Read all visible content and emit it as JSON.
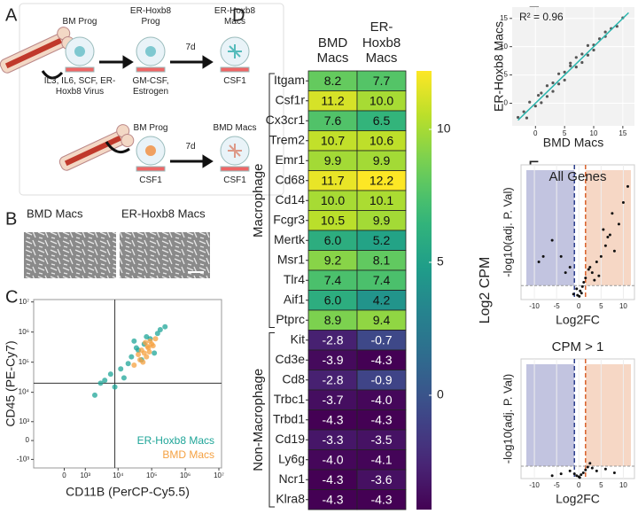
{
  "panel_labels": [
    "A",
    "B",
    "C",
    "D",
    "E",
    "F"
  ],
  "diagram": {
    "labels": [
      "BM Prog",
      "ER-Hoxb8 Prog",
      "ER-Hoxb8 Macs",
      "IL3, IL6, SCF, ER-Hoxb8 Virus",
      "GM-CSF, Estrogen",
      "7d",
      "CSF1",
      "BM Prog",
      "7d",
      "BMD Macs",
      "CSF1",
      "CSF1"
    ]
  },
  "micrographs": {
    "labels": [
      "BMD Macs",
      "ER-Hoxb8 Macs"
    ]
  },
  "chart_data": [
    {
      "type": "scatter",
      "x_label": "CD11B (PerCP-Cy5.5)",
      "y_label": "CD45 (PE-Cy7)",
      "xscale": "biexponential",
      "yscale": "biexponential",
      "xlim": [
        -2000,
        12000000
      ],
      "ylim": [
        -2000,
        12000000
      ],
      "xticks": [
        {
          "value": 0,
          "label": "0"
        },
        {
          "value": 1000,
          "label": "10³"
        },
        {
          "value": 10000,
          "label": "10⁴"
        },
        {
          "value": 100000,
          "label": "10⁵"
        },
        {
          "value": 1000000,
          "label": "10⁶"
        },
        {
          "value": 10000000,
          "label": "10⁷"
        }
      ],
      "yticks": [
        {
          "value": -1000,
          "label": "-10³"
        },
        {
          "value": 0,
          "label": "0"
        },
        {
          "value": 1000,
          "label": "10³"
        },
        {
          "value": 10000,
          "label": "10⁴"
        },
        {
          "value": 100000,
          "label": "10⁵"
        },
        {
          "value": 1000000,
          "label": "10⁶"
        },
        {
          "value": 10000000,
          "label": "10⁷"
        }
      ],
      "quadrant": [
        8000,
        20000
      ],
      "legend": "lower right",
      "series": [
        {
          "name": "ER-Hoxb8 Macs",
          "color": "#1fa598",
          "x": [
            3000,
            6000,
            12000,
            25000,
            40000,
            60000,
            90000,
            150000,
            250000,
            20000,
            8000,
            35000,
            70000,
            120000,
            15000,
            50000,
            2000,
            4000,
            180000,
            30000
          ],
          "y": [
            20000,
            40000,
            60000,
            150000,
            250000,
            400000,
            600000,
            900000,
            1500000,
            90000,
            15000,
            300000,
            700000,
            200000,
            30000,
            120000,
            8000,
            25000,
            1200000,
            500000
          ]
        },
        {
          "name": "BMD Macs",
          "color": "#f5a142",
          "x": [
            30000,
            45000,
            60000,
            80000,
            100000,
            130000,
            50000,
            70000,
            90000,
            40000,
            110000,
            65000,
            85000,
            55000,
            75000
          ],
          "y": [
            80000,
            120000,
            200000,
            300000,
            400000,
            600000,
            250000,
            150000,
            500000,
            180000,
            350000,
            450000,
            220000,
            100000,
            330000
          ]
        }
      ]
    },
    {
      "type": "heatmap",
      "columns": [
        "BMD Macs",
        "ER-Hoxb8 Macs"
      ],
      "rows": [
        "Itgam",
        "Csf1r",
        "Cx3cr1",
        "Trem2",
        "Emr1",
        "Cd68",
        "Cd14",
        "Fcgr3",
        "Mertk",
        "Msr1",
        "Tlr4",
        "Aif1",
        "Ptprc",
        "Kit",
        "Cd3e",
        "Cd8",
        "Trbc1",
        "Trbd1",
        "Cd19",
        "Ly6g",
        "Ncr1",
        "Klra8"
      ],
      "values": [
        [
          8.2,
          7.7
        ],
        [
          11.2,
          10.0
        ],
        [
          7.6,
          6.5
        ],
        [
          10.7,
          10.6
        ],
        [
          9.9,
          9.9
        ],
        [
          11.7,
          12.2
        ],
        [
          10.0,
          10.1
        ],
        [
          10.5,
          9.9
        ],
        [
          6.0,
          5.2
        ],
        [
          9.2,
          8.1
        ],
        [
          7.4,
          7.4
        ],
        [
          6.0,
          4.2
        ],
        [
          8.9,
          9.4
        ],
        [
          -2.8,
          -0.7
        ],
        [
          -3.9,
          -4.3
        ],
        [
          -2.8,
          -0.9
        ],
        [
          -3.7,
          -4.0
        ],
        [
          -4.3,
          -4.3
        ],
        [
          -3.3,
          -3.5
        ],
        [
          -4.0,
          -4.1
        ],
        [
          -4.3,
          -3.6
        ],
        [
          -4.3,
          -4.3
        ]
      ],
      "value_labels": [
        [
          "8.2",
          "7.7"
        ],
        [
          "11.2",
          "10.0"
        ],
        [
          "7.6",
          "6.5"
        ],
        [
          "10.7",
          "10.6"
        ],
        [
          "9.9",
          "9.9"
        ],
        [
          "11.7",
          "12.2"
        ],
        [
          "10.0",
          "10.1"
        ],
        [
          "10.5",
          "9.9"
        ],
        [
          "6.0",
          "5.2"
        ],
        [
          "9.2",
          "8.1"
        ],
        [
          "7.4",
          "7.4"
        ],
        [
          "6.0",
          "4.2"
        ],
        [
          "8.9",
          "9.4"
        ],
        [
          "-2.8",
          "-0.7"
        ],
        [
          "-3.9",
          "-4.3"
        ],
        [
          "-2.8",
          "-0.9"
        ],
        [
          "-3.7",
          "-4.0"
        ],
        [
          "-4.3",
          "-4.3"
        ],
        [
          "-3.3",
          "-3.5"
        ],
        [
          "-4.0",
          "-4.1"
        ],
        [
          "-4.3",
          "-3.6"
        ],
        [
          "-4.3",
          "-4.3"
        ]
      ],
      "groups": [
        {
          "name": "Macrophage",
          "size": 13
        },
        {
          "name": "Non-Macrophage",
          "size": 9
        }
      ],
      "colormap": "viridis",
      "clim": [
        -4.3,
        12.2
      ],
      "cticks": [
        0,
        5,
        10
      ],
      "colorbar_label": "Log2 CPM"
    },
    {
      "type": "scatter",
      "x_label": "BMD Macs",
      "y_label": "ER-Hoxb8 Macs",
      "annotation": "R² = 0.96",
      "xlim": [
        -4,
        17
      ],
      "ylim": [
        -4,
        17
      ],
      "xticks": [
        0,
        5,
        10,
        15
      ],
      "yticks": [
        0,
        5,
        10,
        15
      ],
      "series": [
        {
          "color": "#222222",
          "x": [
            -3,
            -2,
            -1,
            0,
            1,
            2,
            3,
            4,
            5,
            6,
            7,
            8,
            9,
            10,
            11,
            12,
            13,
            14,
            15,
            2,
            5,
            8,
            3,
            6,
            9,
            1,
            4,
            7,
            10,
            12,
            -1.5,
            0.5
          ],
          "y": [
            -2.5,
            -1.5,
            0.2,
            -0.5,
            1.8,
            1.2,
            3.6,
            3.4,
            5.5,
            6.6,
            6.4,
            8.7,
            8.5,
            10.3,
            11.4,
            11.8,
            13.2,
            13.6,
            15.1,
            3.1,
            4.1,
            7.2,
            2.1,
            7.1,
            10.2,
            0.1,
            5.2,
            8.1,
            9.4,
            12.6,
            -2.6,
            1.4
          ]
        }
      ],
      "fit_line": {
        "color": "#2ab5ad",
        "x": [
          -3,
          16
        ],
        "y": [
          -3,
          16
        ]
      }
    },
    {
      "type": "volcano",
      "title": "All Genes",
      "x_label": "Log2FC",
      "y_label": "-log10(adj. P. Val)",
      "xlim": [
        -13,
        12.5
      ],
      "ylim": [
        0,
        12.5
      ],
      "xticks": [
        -10,
        -5,
        0,
        5,
        10
      ],
      "fc_thresholds": [
        -1,
        1.5
      ],
      "p_threshold": 1.3,
      "down_color": "#b3b5d8",
      "up_color": "#f4cdb6",
      "down_line_color": "#2c3e8c",
      "up_line_color": "#d9622b",
      "x": [
        -1.2,
        -0.5,
        0.3,
        0.8,
        1.5,
        2.5,
        3,
        4,
        5,
        6,
        7,
        8,
        9,
        10,
        3.5,
        4.5,
        -2,
        -3,
        -4,
        -6,
        -8,
        -9,
        0.1,
        -0.3,
        0.6,
        1.1,
        5.5,
        6.5,
        7.5,
        2.2,
        11
      ],
      "y": [
        0.5,
        1,
        0.8,
        1.2,
        2,
        3,
        2.5,
        3.5,
        4,
        5,
        6,
        4.5,
        7,
        9,
        1.8,
        2.2,
        3,
        2.5,
        4,
        5.5,
        4,
        3.5,
        0.3,
        0.4,
        0.6,
        1.6,
        6.5,
        5.8,
        8,
        2.8,
        10.5
      ]
    },
    {
      "type": "volcano",
      "title": "CPM > 1",
      "x_label": "Log2FC",
      "y_label": "-log10(adj. P. Val)",
      "xlim": [
        -13,
        12.5
      ],
      "ylim": [
        0,
        12.5
      ],
      "xticks": [
        -10,
        -5,
        0,
        5,
        10
      ],
      "fc_thresholds": [
        -1,
        1.5
      ],
      "p_threshold": 1.3,
      "down_color": "#b3b5d8",
      "up_color": "#f4cdb6",
      "down_line_color": "#2c3e8c",
      "up_line_color": "#d9622b",
      "x": [
        -2,
        -1,
        -0.5,
        0,
        0.5,
        1,
        1.5,
        2,
        3,
        4,
        6,
        8,
        -4,
        -6,
        2.5,
        0.2
      ],
      "y": [
        0.8,
        0.5,
        0.3,
        0.2,
        0.4,
        0.6,
        0.9,
        1.2,
        1.1,
        0.8,
        1,
        0.6,
        0.5,
        0.3,
        1.6,
        0.1
      ]
    }
  ]
}
